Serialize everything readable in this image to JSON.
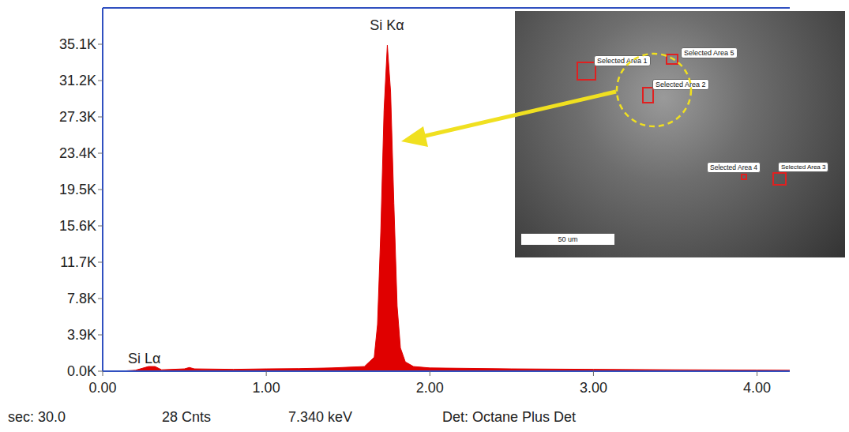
{
  "chart_data": {
    "type": "area",
    "color": "#e00000",
    "grid": false,
    "x": [
      0.1,
      0.2,
      0.28,
      0.32,
      0.36,
      0.5,
      0.53,
      0.56,
      0.8,
      1.0,
      1.2,
      1.4,
      1.6,
      1.66,
      1.68,
      1.7,
      1.72,
      1.74,
      1.76,
      1.78,
      1.8,
      1.82,
      1.85,
      1.9,
      2.0,
      2.5,
      3.0,
      3.5,
      4.0,
      4.2
    ],
    "values": [
      0,
      100,
      500,
      500,
      150,
      250,
      400,
      250,
      200,
      250,
      280,
      350,
      500,
      1500,
      5000,
      15000,
      28000,
      35000,
      30000,
      18000,
      7000,
      2500,
      1000,
      500,
      350,
      250,
      200,
      150,
      120,
      100
    ],
    "xlim": [
      0,
      4.2
    ],
    "ylim": [
      0,
      39000
    ],
    "xticks": [
      {
        "value": 0,
        "label": "0.00"
      },
      {
        "value": 1,
        "label": "1.00"
      },
      {
        "value": 2,
        "label": "2.00"
      },
      {
        "value": 3,
        "label": "3.00"
      },
      {
        "value": 4,
        "label": "4.00"
      }
    ],
    "yticks": [
      {
        "value": 0,
        "label": "0.0K"
      },
      {
        "value": 3900,
        "label": "3.9K"
      },
      {
        "value": 7800,
        "label": "7.8K"
      },
      {
        "value": 11700,
        "label": "11.7K"
      },
      {
        "value": 15600,
        "label": "15.6K"
      },
      {
        "value": 19500,
        "label": "19.5K"
      },
      {
        "value": 23400,
        "label": "23.4K"
      },
      {
        "value": 27300,
        "label": "27.3K"
      },
      {
        "value": 31200,
        "label": "31.2K"
      },
      {
        "value": 35100,
        "label": "35.1K"
      }
    ],
    "annotations": [
      "Si Kα",
      "Si Lα"
    ]
  },
  "footer": [
    "sec: 30.0",
    "28 Cnts",
    "7.340 keV",
    "Det: Octane Plus Det"
  ],
  "inset": {
    "areas": [
      "Selected Area 1",
      "Selected Area 5",
      "Selected Area 2",
      "Selected Area 4",
      "Selected Area 3"
    ],
    "scale_bar": "50 um"
  }
}
